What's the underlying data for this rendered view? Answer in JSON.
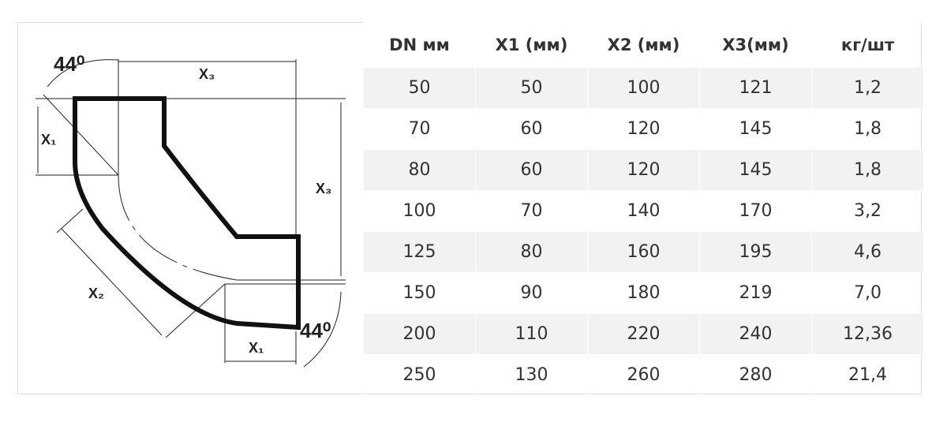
{
  "diagram": {
    "labels": [
      "44⁰",
      "X₃",
      "X₁",
      "X₃",
      "X₂",
      "X₁",
      "44⁰"
    ]
  },
  "table": {
    "header": [
      "DN мм",
      "X1 (мм)",
      "X2 (мм)",
      "X3(мм)",
      "кг/шт"
    ],
    "rows": [
      [
        "50",
        "50",
        "100",
        "121",
        "1,2"
      ],
      [
        "70",
        "60",
        "120",
        "145",
        "1,8"
      ],
      [
        "80",
        "60",
        "120",
        "145",
        "1,8"
      ],
      [
        "100",
        "70",
        "140",
        "170",
        "3,2"
      ],
      [
        "125",
        "80",
        "160",
        "195",
        "4,6"
      ],
      [
        "150",
        "90",
        "180",
        "219",
        "7,0"
      ],
      [
        "200",
        "110",
        "220",
        "240",
        "12,36"
      ],
      [
        "250",
        "130",
        "260",
        "280",
        "21,4"
      ]
    ]
  }
}
